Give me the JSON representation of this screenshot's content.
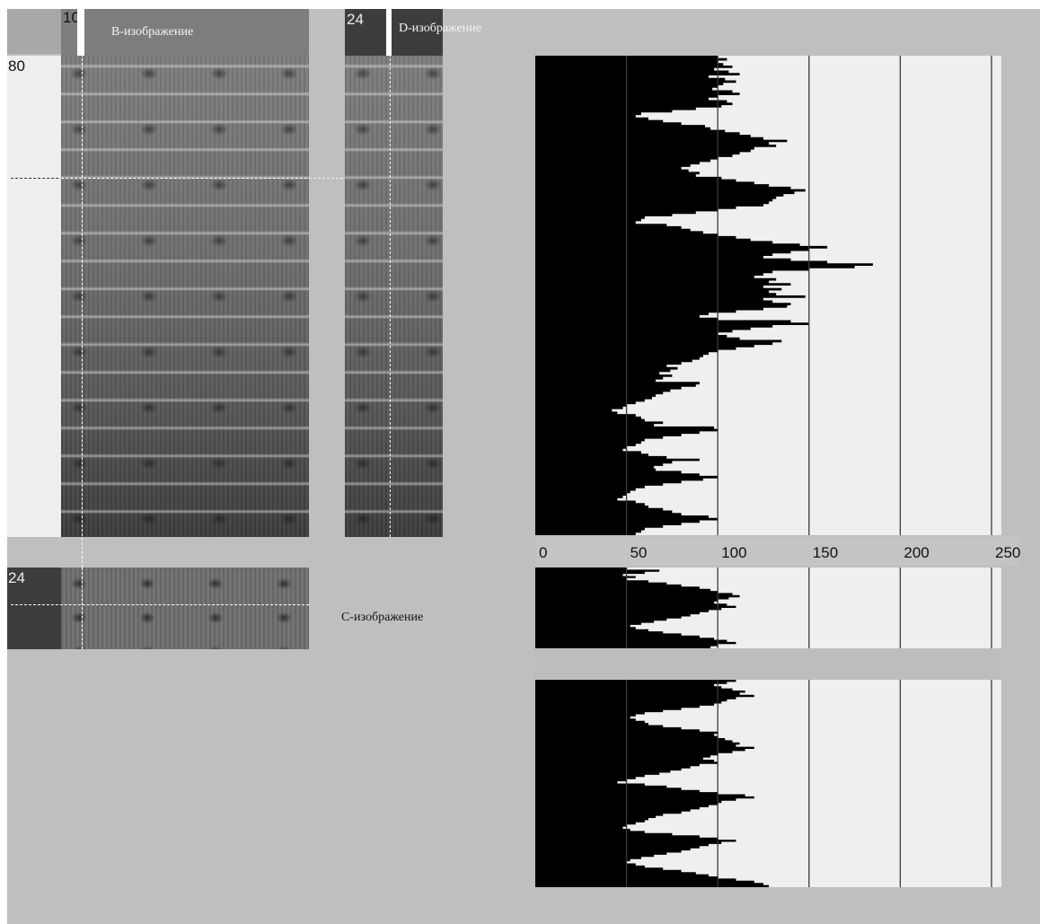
{
  "b_image": {
    "label": "B-изображение",
    "scan_index": "10",
    "depth_index": "80"
  },
  "d_image": {
    "label": "D-изображение",
    "scan_index": "24"
  },
  "c_image": {
    "label": "C-изображение",
    "scan_index": "24"
  },
  "colors": {
    "workspace": "#bfbfbf",
    "profile_fill": "#000000",
    "profile_bg": "#efefef",
    "grid": "#3a3a3a"
  },
  "chart_data": {
    "type": "area",
    "orientation": "horizontal",
    "title": "",
    "xlabel": "",
    "ylabel": "",
    "xlim": [
      0,
      250
    ],
    "xticks": [
      "0",
      "50",
      "100",
      "150",
      "200",
      "250"
    ],
    "grid": true,
    "panels": [
      {
        "name": "",
        "values": [
          100,
          105,
          100,
          103,
          108,
          98,
          106,
          112,
          95,
          104,
          110,
          103,
          100,
          97,
          108,
          112,
          100,
          95,
          105,
          108,
          102,
          88,
          75,
          58,
          55,
          62,
          70,
          80,
          93,
          96,
          104,
          112,
          118,
          125,
          138,
          128,
          132,
          120,
          118,
          112,
          108,
          100,
          96,
          90,
          85,
          80,
          84,
          90,
          88,
          102,
          110,
          120,
          128,
          140,
          148,
          142,
          136,
          132,
          130,
          128,
          125,
          110,
          100,
          88,
          75,
          60,
          58,
          55,
          72,
          80,
          85,
          92,
          100,
          110,
          118,
          130,
          145,
          160,
          150,
          140,
          130,
          125,
          140,
          160,
          185,
          175,
          150,
          130,
          125,
          120,
          132,
          128,
          140,
          125,
          135,
          128,
          132,
          148,
          125,
          130,
          140,
          138,
          125,
          110,
          95,
          90,
          100,
          140,
          150,
          130,
          118,
          108,
          100,
          105,
          112,
          135,
          130,
          120,
          110,
          100,
          95,
          92,
          90,
          86,
          80,
          72,
          78,
          74,
          68,
          75,
          70,
          66,
          90,
          88,
          80,
          74,
          70,
          66,
          64,
          60,
          55,
          50,
          48,
          42,
          45,
          55,
          58,
          60,
          70,
          65,
          98,
          100,
          90,
          80,
          70,
          60,
          58,
          55,
          50,
          48,
          58,
          62,
          72,
          90,
          75,
          70,
          65,
          66,
          80,
          90,
          100,
          92,
          80,
          70,
          60,
          55,
          52,
          50,
          48,
          45,
          55,
          60,
          62,
          70,
          75,
          80,
          95,
          100,
          90,
          80,
          70,
          60,
          58,
          55
        ],
        "range_rows": [
          62,
          596
        ]
      },
      {
        "name": "",
        "values": [
          50,
          68,
          60,
          48,
          55,
          50,
          62,
          72,
          80,
          90,
          96,
          100,
          108,
          112,
          106,
          100,
          98,
          105,
          110,
          102,
          95,
          90,
          85,
          80,
          72,
          65,
          58,
          52,
          55,
          62,
          70,
          80,
          90,
          98,
          105,
          110,
          100,
          96
        ],
        "range_rows": [
          632,
          722
        ]
      },
      {
        "name": "",
        "values": [
          110,
          105,
          98,
          102,
          108,
          115,
          112,
          120,
          110,
          105,
          102,
          98,
          90,
          80,
          70,
          60,
          55,
          52,
          55,
          60,
          62,
          70,
          80,
          90,
          100,
          98,
          100,
          104,
          108,
          112,
          110,
          120,
          115,
          108,
          100,
          96,
          92,
          98,
          100,
          90,
          85,
          80,
          74,
          68,
          60,
          55,
          50,
          45,
          60,
          72,
          80,
          90,
          100,
          115,
          120,
          110,
          102,
          100,
          95,
          90,
          85,
          80,
          70,
          66,
          62,
          60,
          55,
          50,
          48,
          52,
          60,
          75,
          90,
          100,
          110,
          102,
          95,
          90,
          85,
          80,
          72,
          65,
          58,
          52,
          50,
          55,
          60,
          70,
          80,
          88,
          95,
          100,
          110,
          120,
          125,
          128
        ],
        "range_rows": [
          757,
          988
        ]
      }
    ]
  }
}
